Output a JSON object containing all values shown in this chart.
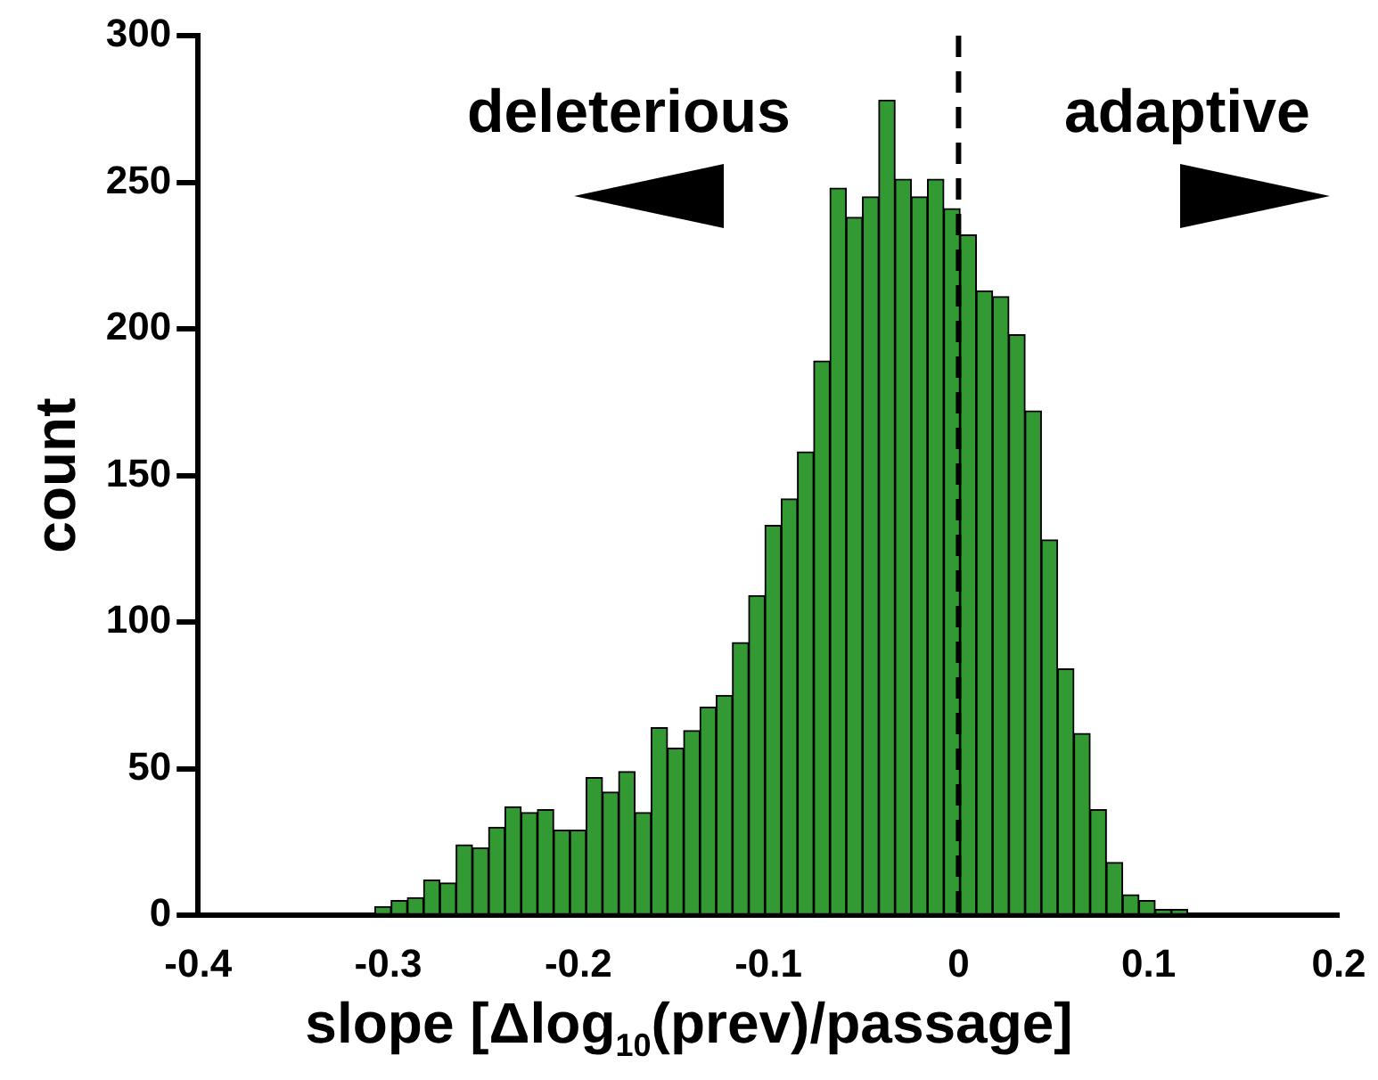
{
  "chart_data": {
    "type": "histogram",
    "xlabel": "slope [Δlog$_{10}$(prev)/passage]",
    "ylabel": "count",
    "bins": [
      -0.307,
      -0.29845,
      -0.2899,
      -0.28135,
      -0.2728,
      -0.26425,
      -0.2557,
      -0.24715,
      -0.2386,
      -0.23005,
      -0.2215,
      -0.21295,
      -0.2044,
      -0.19585,
      -0.1873,
      -0.17875,
      -0.1702,
      -0.16165,
      -0.1531,
      -0.14455,
      -0.136,
      -0.12745,
      -0.1189,
      -0.11035,
      -0.1018,
      -0.09325,
      -0.0847,
      -0.07615,
      -0.0676,
      -0.05905,
      -0.0505,
      -0.04195,
      -0.0334,
      -0.02485,
      -0.0163,
      -0.00775,
      0.0008,
      0.00935,
      0.0179,
      0.02645,
      0.035,
      0.04355,
      0.0521,
      0.06065,
      0.0692,
      0.07775,
      0.0863,
      0.09485,
      0.1034,
      0.11195,
      0.1205
    ],
    "values": [
      3,
      5,
      6,
      12,
      11,
      24,
      23,
      30,
      37,
      35,
      36,
      29,
      29,
      47,
      42,
      49,
      35,
      64,
      57,
      63,
      71,
      75,
      93,
      109,
      133,
      142,
      158,
      189,
      248,
      238,
      245,
      278,
      251,
      245,
      251,
      241,
      232,
      213,
      211,
      198,
      172,
      128,
      84,
      62,
      36,
      18,
      7,
      5,
      2,
      2
    ],
    "color": "#339933",
    "xlim": [
      -0.4,
      0.2
    ],
    "xticks": [
      -0.4,
      -0.3,
      -0.2,
      -0.1,
      0,
      0.1,
      0.2
    ],
    "ylim": [
      0,
      300
    ],
    "yticks": [
      0,
      50,
      100,
      150,
      200,
      250,
      300
    ],
    "grid": false,
    "legend": false,
    "ref_lines": [
      {
        "axis": "x",
        "value": 0,
        "color": "#000000",
        "line_style": "dashed"
      }
    ],
    "annotations": [
      "deleterious",
      "adaptive"
    ]
  }
}
